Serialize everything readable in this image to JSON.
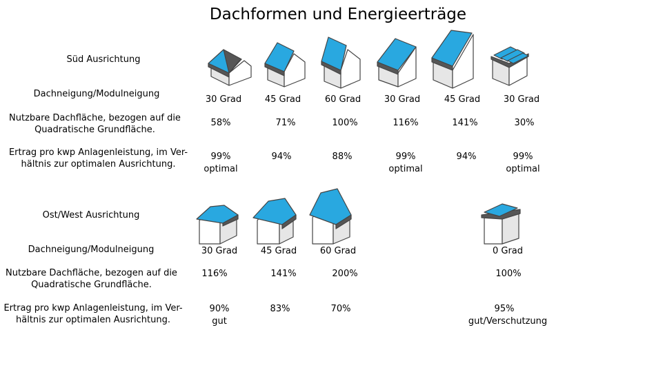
{
  "title": "Dachformen und Energieerträge",
  "sections": [
    {
      "heading": "Süd Ausrichtung",
      "row_labels": {
        "neigung": "Dachneigung/Modulneigung",
        "flaeche_1": "Nutzbare Dachfläche, bezogen auf die",
        "flaeche_2": "Quadratische Grundfläche.",
        "ertrag_1": "Ertrag pro kwp Anlagenleistung, im Ver-",
        "ertrag_2": "hältnis zur optimalen Ausrichtung."
      },
      "columns": [
        {
          "icon": "gable-roof-house-icon",
          "neigung": "30 Grad",
          "flaeche": "58%",
          "ertrag": "99%",
          "note": "optimal"
        },
        {
          "icon": "gable-roof-house-icon",
          "neigung": "45 Grad",
          "flaeche": "71%",
          "ertrag": "94%",
          "note": ""
        },
        {
          "icon": "gable-roof-house-icon",
          "neigung": "60 Grad",
          "flaeche": "100%",
          "ertrag": "88%",
          "note": ""
        },
        {
          "icon": "shed-roof-house-icon",
          "neigung": "30 Grad",
          "flaeche": "116%",
          "ertrag": "99%",
          "note": "optimal"
        },
        {
          "icon": "shed-roof-house-icon",
          "neigung": "45 Grad",
          "flaeche": "141%",
          "ertrag": "94%",
          "note": ""
        },
        {
          "icon": "flat-roof-rack-house-icon",
          "neigung": "30 Grad",
          "flaeche": "30%",
          "ertrag": "99%",
          "note": "optimal"
        }
      ]
    },
    {
      "heading": "Ost/West Ausrichtung",
      "row_labels": {
        "neigung": "Dachneigung/Modulneigung",
        "flaeche_1": "Nutzbare Dachfläche, bezogen auf die",
        "flaeche_2": "Quadratische Grundfläche.",
        "ertrag_1": "Ertrag pro kwp Anlagenleistung, im Ver-",
        "ertrag_2": "hältnis zur optimalen Ausrichtung."
      },
      "columns": [
        {
          "icon": "gable-roof-house-icon",
          "neigung": "30 Grad",
          "flaeche": "116%",
          "ertrag": "90%",
          "note": "gut"
        },
        {
          "icon": "gable-roof-house-icon",
          "neigung": "45 Grad",
          "flaeche": "141%",
          "ertrag": "83%",
          "note": ""
        },
        {
          "icon": "gable-roof-house-icon",
          "neigung": "60 Grad",
          "flaeche": "200%",
          "ertrag": "70%",
          "note": ""
        },
        {
          "icon": "flat-roof-house-icon",
          "neigung": "0 Grad",
          "flaeche": "100%",
          "ertrag": "95%",
          "note": "gut/Verschutzung"
        }
      ]
    }
  ],
  "colors": {
    "solar_panel": "#29a8e0",
    "roof_shingle": "#555555",
    "wall": "#ffffff",
    "wall_shade": "#e8e8e8",
    "outline": "#444444"
  }
}
